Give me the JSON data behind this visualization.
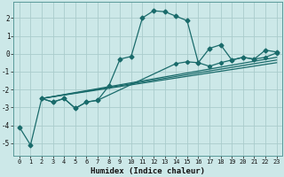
{
  "xlabel": "Humidex (Indice chaleur)",
  "background_color": "#cce8e8",
  "grid_color": "#aacccc",
  "line_color": "#1a6b6b",
  "xlim": [
    -0.5,
    23.5
  ],
  "ylim": [
    -5.7,
    2.9
  ],
  "xticks": [
    0,
    1,
    2,
    3,
    4,
    5,
    6,
    7,
    8,
    9,
    10,
    11,
    12,
    13,
    14,
    15,
    16,
    17,
    18,
    19,
    20,
    21,
    22,
    23
  ],
  "yticks": [
    -5,
    -4,
    -3,
    -2,
    -1,
    0,
    1,
    2
  ],
  "line1_x": [
    0,
    1,
    2,
    3,
    4,
    5,
    6,
    7,
    8,
    9,
    10,
    11,
    12,
    13,
    14,
    15,
    16,
    17,
    18,
    19,
    20,
    21,
    22,
    23
  ],
  "line1_y": [
    -4.1,
    -5.1,
    -2.5,
    -2.7,
    -2.5,
    -3.05,
    -2.7,
    -2.6,
    -1.8,
    -0.3,
    -0.15,
    2.0,
    2.4,
    2.35,
    2.1,
    1.85,
    -0.5,
    0.3,
    0.5,
    -0.35,
    -0.2,
    -0.3,
    0.2,
    0.1
  ],
  "line2_x": [
    2,
    3,
    4,
    5,
    6,
    7,
    14,
    15,
    16,
    17,
    18,
    19,
    20,
    21,
    22,
    23
  ],
  "line2_y": [
    -2.5,
    -2.7,
    -2.5,
    -3.05,
    -2.7,
    -2.6,
    -0.55,
    -0.45,
    -0.5,
    -0.7,
    -0.5,
    -0.35,
    -0.2,
    -0.3,
    -0.2,
    0.05
  ],
  "trend_lines": [
    {
      "x": [
        2,
        23
      ],
      "y": [
        -2.5,
        -0.35
      ]
    },
    {
      "x": [
        2,
        23
      ],
      "y": [
        -2.5,
        -0.5
      ]
    },
    {
      "x": [
        2,
        23
      ],
      "y": [
        -2.5,
        -0.2
      ]
    }
  ]
}
